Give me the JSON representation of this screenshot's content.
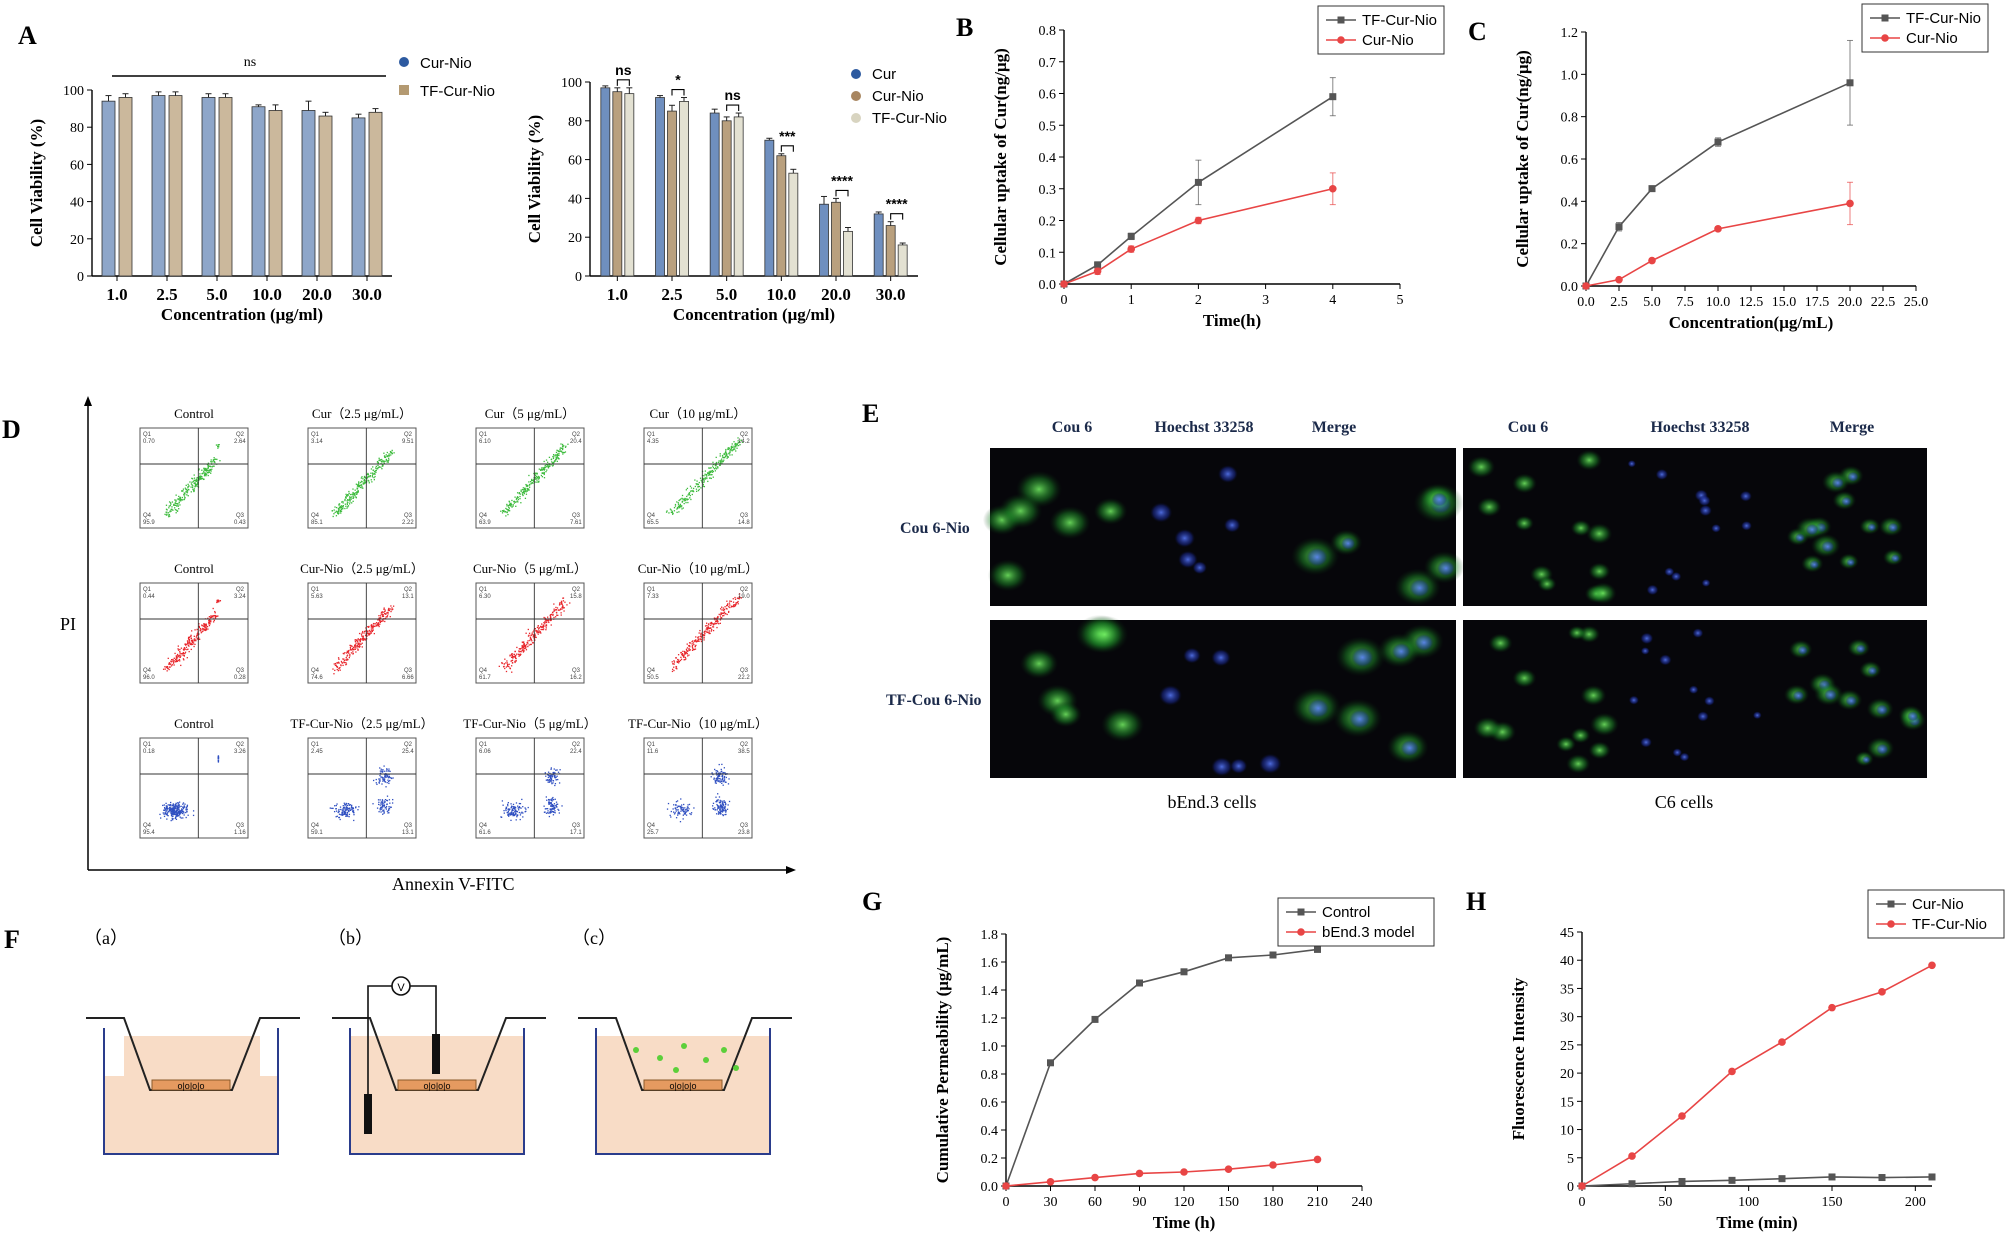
{
  "panel_labels": {
    "A": "A",
    "B": "B",
    "C": "C",
    "D": "D",
    "E": "E",
    "F": "F",
    "G": "G",
    "H": "H"
  },
  "chart_data": [
    {
      "id": "A1",
      "type": "bar",
      "categories": [
        "1.0",
        "2.5",
        "5.0",
        "10.0",
        "20.0",
        "30.0"
      ],
      "series": [
        {
          "name": "Cur-Nio",
          "color": "#8ea6c9",
          "values": [
            94,
            97,
            96,
            91,
            89,
            85
          ],
          "errors": [
            3,
            2,
            2,
            1,
            5,
            2
          ]
        },
        {
          "name": "TF-Cur-Nio",
          "color": "#cbb89c",
          "values": [
            96,
            97,
            96,
            89,
            86,
            88
          ],
          "errors": [
            2,
            2,
            2,
            3,
            2,
            2
          ]
        }
      ],
      "xlabel": "Concentration (μg/ml)",
      "ylabel": "Cell Viability (%)",
      "ylim": [
        0,
        100
      ],
      "yticks": [
        "0",
        "20",
        "40",
        "60",
        "80",
        "100"
      ],
      "annotation": "ns"
    },
    {
      "id": "A2",
      "type": "bar",
      "categories": [
        "1.0",
        "2.5",
        "5.0",
        "10.0",
        "20.0",
        "30.0"
      ],
      "series": [
        {
          "name": "Cur",
          "color": "#6f8fbf",
          "values": [
            97,
            92,
            84,
            70,
            37,
            32
          ],
          "errors": [
            1,
            1,
            2,
            1,
            4,
            1
          ]
        },
        {
          "name": "Cur-Nio",
          "color": "#b9a07e",
          "values": [
            95,
            85,
            80,
            62,
            38,
            26
          ],
          "errors": [
            2,
            3,
            2,
            1,
            2,
            2
          ]
        },
        {
          "name": "TF-Cur-Nio",
          "color": "#e3e1d2",
          "values": [
            94,
            90,
            82,
            53,
            23,
            16
          ],
          "errors": [
            3,
            2,
            2,
            2,
            2,
            1
          ]
        }
      ],
      "xlabel": "Concentration (μg/ml)",
      "ylabel": "Cell Viability (%)",
      "ylim": [
        0,
        100
      ],
      "yticks": [
        "0",
        "20",
        "40",
        "60",
        "80",
        "100"
      ],
      "significance": [
        "ns",
        "*",
        "ns",
        "***",
        "****",
        "****"
      ]
    },
    {
      "id": "B",
      "type": "line",
      "x": [
        0,
        0.5,
        1,
        2,
        4
      ],
      "series": [
        {
          "name": "TF-Cur-Nio",
          "color": "#555555",
          "marker": "square",
          "values": [
            0,
            0.06,
            0.15,
            0.32,
            0.59
          ],
          "errors": [
            0,
            0.01,
            0.01,
            0.07,
            0.06
          ]
        },
        {
          "name": "Cur-Nio",
          "color": "#e84545",
          "marker": "circle",
          "values": [
            0,
            0.04,
            0.11,
            0.2,
            0.3
          ],
          "errors": [
            0,
            0.01,
            0.01,
            0.01,
            0.05
          ]
        }
      ],
      "xlabel": "Time(h)",
      "ylabel": "Cellular uptake of Cur(ng/μg)",
      "xlim": [
        0,
        5
      ],
      "ylim": [
        0,
        0.8
      ],
      "xticks": [
        "0",
        "1",
        "2",
        "3",
        "4",
        "5"
      ],
      "yticks": [
        "0.0",
        "0.1",
        "0.2",
        "0.3",
        "0.4",
        "0.5",
        "0.6",
        "0.7",
        "0.8"
      ]
    },
    {
      "id": "C",
      "type": "line",
      "x": [
        0,
        2.5,
        5,
        10,
        20
      ],
      "series": [
        {
          "name": "TF-Cur-Nio",
          "color": "#555555",
          "marker": "square",
          "values": [
            0,
            0.28,
            0.46,
            0.68,
            0.96
          ],
          "errors": [
            0,
            0.02,
            0.01,
            0.02,
            0.2
          ]
        },
        {
          "name": "Cur-Nio",
          "color": "#e84545",
          "marker": "circle",
          "values": [
            0,
            0.03,
            0.12,
            0.27,
            0.39
          ],
          "errors": [
            0,
            0.005,
            0.01,
            0.01,
            0.1
          ]
        }
      ],
      "xlabel": "Concentration(μg/mL)",
      "ylabel": "Cellular uptake of Cur(ng/μg)",
      "xlim": [
        0,
        25
      ],
      "ylim": [
        0,
        1.2
      ],
      "xticks": [
        "0.0",
        "2.5",
        "5.0",
        "7.5",
        "10.0",
        "12.5",
        "15.0",
        "17.5",
        "20.0",
        "22.5",
        "25.0"
      ],
      "yticks": [
        "0.0",
        "0.2",
        "0.4",
        "0.6",
        "0.8",
        "1.0",
        "1.2"
      ]
    },
    {
      "id": "G",
      "type": "line",
      "x": [
        0,
        30,
        60,
        90,
        120,
        150,
        180,
        210
      ],
      "series": [
        {
          "name": "Control",
          "color": "#555555",
          "marker": "square",
          "values": [
            0,
            0.88,
            1.19,
            1.45,
            1.53,
            1.63,
            1.65,
            1.69
          ]
        },
        {
          "name": "bEnd.3 model",
          "color": "#e84545",
          "marker": "circle",
          "values": [
            0,
            0.03,
            0.06,
            0.09,
            0.1,
            0.12,
            0.15,
            0.19
          ]
        }
      ],
      "xlabel": "Time (h)",
      "ylabel": "Cumulative Permeability (μg/mL)",
      "xlim": [
        0,
        240
      ],
      "ylim": [
        0,
        1.8
      ],
      "xticks": [
        "0",
        "30",
        "60",
        "90",
        "120",
        "150",
        "180",
        "210",
        "240"
      ],
      "yticks": [
        "0.0",
        "0.2",
        "0.4",
        "0.6",
        "0.8",
        "1.0",
        "1.2",
        "1.4",
        "1.6",
        "1.8"
      ]
    },
    {
      "id": "H",
      "type": "line",
      "x": [
        0,
        30,
        60,
        90,
        120,
        150,
        180,
        210
      ],
      "series": [
        {
          "name": "Cur-Nio",
          "color": "#555555",
          "marker": "square",
          "values": [
            0,
            0.4,
            0.8,
            1.0,
            1.3,
            1.6,
            1.5,
            1.6
          ]
        },
        {
          "name": "TF-Cur-Nio",
          "color": "#e84545",
          "marker": "circle",
          "values": [
            0,
            5.3,
            12.4,
            20.3,
            25.5,
            31.6,
            34.4,
            39.1
          ]
        }
      ],
      "xlabel": "Time (min)",
      "ylabel": "Fluorescence Intensity",
      "xlim": [
        0,
        210
      ],
      "ylim": [
        0,
        45
      ],
      "xticks": [
        "0",
        "50",
        "100",
        "150",
        "200"
      ],
      "yticks": [
        "0",
        "5",
        "10",
        "15",
        "20",
        "25",
        "30",
        "35",
        "40",
        "45"
      ]
    }
  ],
  "panel_D": {
    "y_axis_label": "PI",
    "x_axis_label": "Annexin V-FITC",
    "rows": [
      {
        "color": "#3dbb3d",
        "titles": [
          "Control",
          "Cur（2.5 μg/mL）",
          "Cur（5 μg/mL）",
          "Cur（10 μg/mL）"
        ],
        "quadrants": [
          [
            "0.70",
            "2.64",
            "95.9",
            "0.43"
          ],
          [
            "3.14",
            "9.51",
            "85.1",
            "2.22"
          ],
          [
            "6.10",
            "20.4",
            "63.9",
            "7.61"
          ],
          [
            "4.35",
            "14.2",
            "65.5",
            "14.8"
          ]
        ]
      },
      {
        "color": "#e8262b",
        "titles": [
          "Control",
          "Cur-Nio（2.5 μg/mL）",
          "Cur-Nio（5 μg/mL）",
          "Cur-Nio（10 μg/mL）"
        ],
        "quadrants": [
          [
            "0.44",
            "3.24",
            "96.0",
            "0.28"
          ],
          [
            "5.63",
            "13.1",
            "74.6",
            "6.66"
          ],
          [
            "6.30",
            "15.8",
            "61.7",
            "16.2"
          ],
          [
            "7.33",
            "19.0",
            "50.5",
            "22.2"
          ]
        ]
      },
      {
        "color": "#2f4fc1",
        "titles": [
          "Control",
          "TF-Cur-Nio（2.5 μg/mL）",
          "TF-Cur-Nio（5 μg/mL）",
          "TF-Cur-Nio（10 μg/mL）"
        ],
        "quadrants": [
          [
            "0.18",
            "3.26",
            "95.4",
            "1.16"
          ],
          [
            "2.45",
            "25.4",
            "59.1",
            "13.1"
          ],
          [
            "6.06",
            "22.4",
            "61.6",
            "17.1"
          ],
          [
            "11.6",
            "38.5",
            "25.7",
            "23.8"
          ]
        ]
      }
    ]
  },
  "panel_E": {
    "columns": [
      "Cou 6",
      "Hoechst 33258",
      "Merge",
      "Cou 6",
      "Hoechst 33258",
      "Merge"
    ],
    "rows": [
      "Cou 6-Nio",
      "TF-Cou 6-Nio"
    ],
    "captions": [
      "bEnd.3  cells",
      "C6  cells"
    ]
  },
  "panel_F": {
    "sublabels": [
      "（a）",
      "（b）",
      "（c）"
    ],
    "meter": "V",
    "cell_pattern": "o|o|o|o"
  }
}
